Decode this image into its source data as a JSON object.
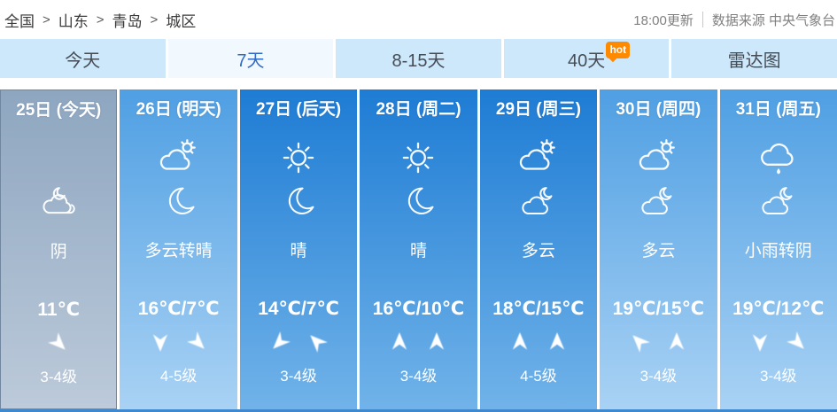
{
  "breadcrumb": {
    "items": [
      "全国",
      "山东",
      "青岛",
      "城区"
    ],
    "separator": ">"
  },
  "meta": {
    "update_time": "18:00更新",
    "source": "数据来源 中央气象台"
  },
  "tabs": [
    {
      "name": "tab-today",
      "label": "今天",
      "active": false
    },
    {
      "name": "tab-7day",
      "label": "7天",
      "active": true
    },
    {
      "name": "tab-8-15day",
      "label": "8-15天",
      "active": false
    },
    {
      "name": "tab-40day",
      "label": "40天",
      "active": false,
      "badge": "hot"
    },
    {
      "name": "tab-radar",
      "label": "雷达图",
      "active": false
    }
  ],
  "colors": {
    "tab_bg": "#cde8fb",
    "tab_active_bg": "#f2f9fe",
    "tab_active_text": "#2f6bc4",
    "hot_badge": "#ff8a00",
    "today_top": "#8ea6c0",
    "today_bottom": "#bccada",
    "light_top": "#4f9fe3",
    "light_bottom": "#a9d2f4",
    "deep_top": "#1e7cd4",
    "deep_bottom": "#71b3e9",
    "bottom_strip": "#3e88cf"
  },
  "forecast": {
    "days": [
      {
        "date": "25日 (今天)",
        "theme": "today",
        "icon_day": "",
        "icon_night": "overcast",
        "desc": "阴",
        "temp": "11℃",
        "wind_rotations": [
          135
        ],
        "wind_level": "3-4级"
      },
      {
        "date": "26日 (明天)",
        "theme": "light",
        "icon_day": "sun-cloud",
        "icon_night": "moon",
        "desc": "多云转晴",
        "temp": "16℃/7℃",
        "wind_rotations": [
          180,
          135
        ],
        "wind_level": "4-5级"
      },
      {
        "date": "27日 (后天)",
        "theme": "deep",
        "icon_day": "sun",
        "icon_night": "moon",
        "desc": "晴",
        "temp": "14℃/7℃",
        "wind_rotations": [
          225,
          315
        ],
        "wind_level": "3-4级"
      },
      {
        "date": "28日 (周二)",
        "theme": "deep",
        "icon_day": "sun",
        "icon_night": "moon",
        "desc": "晴",
        "temp": "16℃/10℃",
        "wind_rotations": [
          0,
          0
        ],
        "wind_level": "3-4级"
      },
      {
        "date": "29日 (周三)",
        "theme": "deep",
        "icon_day": "sun-cloud",
        "icon_night": "cloud-moon",
        "desc": "多云",
        "temp": "18℃/15℃",
        "wind_rotations": [
          0,
          0
        ],
        "wind_level": "4-5级"
      },
      {
        "date": "30日 (周四)",
        "theme": "light",
        "icon_day": "sun-cloud",
        "icon_night": "cloud-moon",
        "desc": "多云",
        "temp": "19℃/15℃",
        "wind_rotations": [
          315,
          0
        ],
        "wind_level": "3-4级"
      },
      {
        "date": "31日 (周五)",
        "theme": "light",
        "icon_day": "rain",
        "icon_night": "cloud-moon",
        "desc": "小雨转阴",
        "temp": "19℃/12℃",
        "wind_rotations": [
          180,
          135
        ],
        "wind_level": "3-4级"
      }
    ]
  }
}
